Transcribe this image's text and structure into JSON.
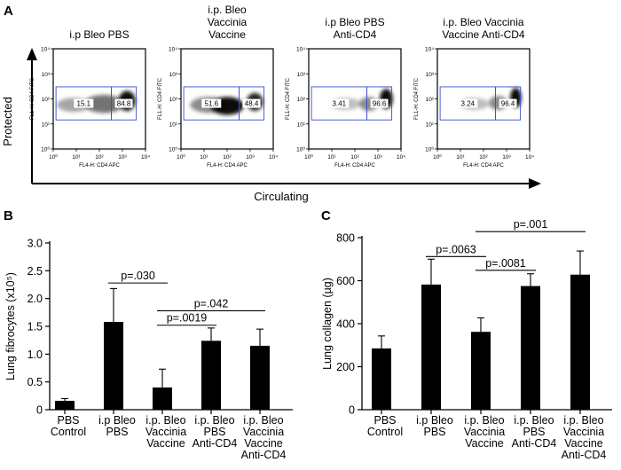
{
  "panels": {
    "A": "A",
    "B": "B",
    "C": "C"
  },
  "panel_a": {
    "y_axis_label": "Protected",
    "x_axis_label": "Circulating",
    "tick_labels": [
      "10⁰",
      "10¹",
      "10²",
      "10³",
      "10⁴"
    ],
    "plot_xlabel": "FL4-H: CD4 APC",
    "plot_ylabel": "FL1-H: CD4 FITC",
    "gate_color": "#3b4fd0",
    "plots": [
      {
        "title_lines": [
          "i.p Bleo PBS"
        ],
        "left_gate_pct": "15.1",
        "right_gate_pct": "84.8"
      },
      {
        "title_lines": [
          "i.p. Bleo",
          "Vaccinia",
          "Vaccine"
        ],
        "left_gate_pct": "51.6",
        "right_gate_pct": "48.4"
      },
      {
        "title_lines": [
          "i.p Bleo PBS",
          "Anti-CD4"
        ],
        "left_gate_pct": "3.41",
        "right_gate_pct": "96.6"
      },
      {
        "title_lines": [
          "i.p. Bleo Vaccinia",
          "Vaccine  Anti-CD4"
        ],
        "left_gate_pct": "3.24",
        "right_gate_pct": "96.4"
      }
    ]
  },
  "chart_data": [
    {
      "type": "bar",
      "panel": "B",
      "ylabel": "Lung fibrocytes (x10⁵)",
      "ylim": [
        0,
        3.0
      ],
      "yticks": [
        "0",
        "0.5",
        "1.0",
        "1.5",
        "2.0",
        "2.5",
        "3.0"
      ],
      "ytick_values": [
        0,
        0.5,
        1.0,
        1.5,
        2.0,
        2.5,
        3.0
      ],
      "categories": [
        [
          "PBS",
          "Control"
        ],
        [
          "i.p Bleo",
          "PBS"
        ],
        [
          "i.p. Bleo",
          "Vaccinia",
          "Vaccine"
        ],
        [
          "i.p. Bleo",
          "PBS",
          "Anti-CD4"
        ],
        [
          "i.p. Bleo",
          "Vaccinia",
          "Vaccine",
          "Anti-CD4"
        ]
      ],
      "values": [
        0.16,
        1.58,
        0.4,
        1.24,
        1.15
      ],
      "errors": [
        0.04,
        0.6,
        0.33,
        0.23,
        0.3
      ],
      "comparisons": [
        {
          "from": 1,
          "to": 2,
          "y": 2.28,
          "label": "p=.030"
        },
        {
          "from": 2,
          "to": 4,
          "y": 1.78,
          "label": "p=.042"
        },
        {
          "from": 2,
          "to": 3,
          "y": 1.52,
          "label": "p=.0019"
        }
      ]
    },
    {
      "type": "bar",
      "panel": "C",
      "ylabel": "Lung collagen (µg)",
      "ylim": [
        0,
        800
      ],
      "yticks": [
        "0",
        "200",
        "400",
        "600",
        "800"
      ],
      "ytick_values": [
        0,
        200,
        400,
        600,
        800
      ],
      "categories": [
        [
          "PBS",
          "Control"
        ],
        [
          "i.p Bleo",
          "PBS"
        ],
        [
          "i.p. Bleo",
          "Vaccinia",
          "Vaccine"
        ],
        [
          "i.p. Bleo",
          "PBS",
          "Anti-CD4"
        ],
        [
          "i.p. Bleo",
          "Vaccinia",
          "Vaccine",
          "Anti-CD4"
        ]
      ],
      "values": [
        285,
        582,
        362,
        575,
        628
      ],
      "errors": [
        58,
        118,
        65,
        57,
        110
      ],
      "comparisons": [
        {
          "from": 2,
          "to": 4,
          "y": 828,
          "label": "p=.001"
        },
        {
          "from": 1,
          "to": 2,
          "y": 712,
          "label": "p=.0063"
        },
        {
          "from": 2,
          "to": 3,
          "y": 648,
          "label": "p=.0081"
        }
      ]
    }
  ]
}
